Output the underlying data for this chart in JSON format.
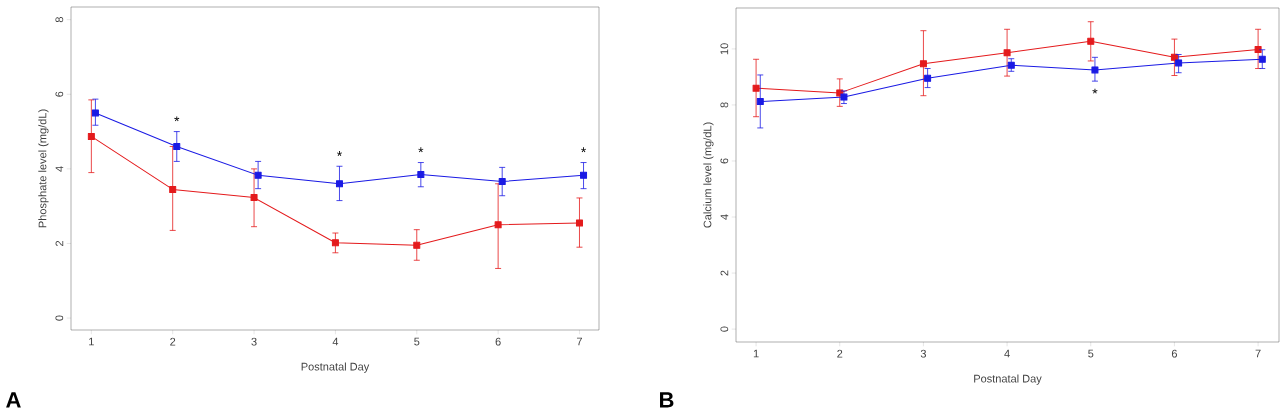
{
  "chart_data": [
    {
      "type": "line",
      "xlabel": "Postnatal Day",
      "ylabel": "Phosphate level (mg/dL)",
      "xlim": [
        0.75,
        7.24
      ],
      "ylim": [
        -0.32,
        8.34
      ],
      "xticks": [
        1,
        2,
        3,
        4,
        5,
        6,
        7
      ],
      "yticks": [
        0,
        2,
        4,
        6,
        8
      ],
      "marker": "square",
      "line_style": "solid",
      "series": [
        {
          "color": "#e41a1c",
          "x": [
            1,
            2,
            3,
            4,
            5,
            6,
            7
          ],
          "values": [
            4.87,
            3.45,
            3.23,
            2.02,
            1.95,
            2.5,
            2.55
          ],
          "errors": [
            [
              3.9,
              5.85
            ],
            [
              2.35,
              4.6
            ],
            [
              2.45,
              4.0
            ],
            [
              1.75,
              2.28
            ],
            [
              1.55,
              2.37
            ],
            [
              1.33,
              3.6
            ],
            [
              1.9,
              3.22
            ]
          ]
        },
        {
          "color": "#1a1ae4",
          "x": [
            1.05,
            2.05,
            3.05,
            4.05,
            5.05,
            6.05,
            7.05
          ],
          "values": [
            5.5,
            4.6,
            3.83,
            3.6,
            3.85,
            3.66,
            3.83
          ],
          "errors": [
            [
              5.17,
              5.87
            ],
            [
              4.2,
              5.0
            ],
            [
              3.47,
              4.2
            ],
            [
              3.15,
              4.07
            ],
            [
              3.52,
              4.17
            ],
            [
              3.28,
              4.04
            ],
            [
              3.47,
              4.17
            ]
          ]
        }
      ],
      "annotations": [
        "A",
        {
          "text": "*",
          "x": 2.05,
          "y": 5.0
        },
        {
          "text": "*",
          "x": 4.05,
          "y": 4.07
        },
        {
          "text": "*",
          "x": 5.05,
          "y": 4.17
        },
        {
          "text": "*",
          "x": 7.05,
          "y": 4.17
        }
      ]
    },
    {
      "type": "line",
      "xlabel": "Postnatal Day",
      "ylabel": "Calcium level (mg/dL)",
      "xlim": [
        0.76,
        7.25
      ],
      "ylim": [
        -0.46,
        11.46
      ],
      "xticks": [
        1,
        2,
        3,
        4,
        5,
        6,
        7
      ],
      "yticks": [
        0,
        2,
        4,
        6,
        8,
        10
      ],
      "marker": "square",
      "line_style": "solid",
      "series": [
        {
          "color": "#e41a1c",
          "x": [
            1,
            2,
            3,
            4,
            5,
            6,
            7
          ],
          "values": [
            8.6,
            8.43,
            9.47,
            9.86,
            10.27,
            9.7,
            9.98
          ],
          "errors": [
            [
              7.58,
              9.63
            ],
            [
              7.95,
              8.93
            ],
            [
              8.33,
              10.65
            ],
            [
              9.03,
              10.7
            ],
            [
              9.57,
              10.97
            ],
            [
              9.05,
              10.35
            ],
            [
              9.3,
              10.7
            ]
          ]
        },
        {
          "color": "#1a1ae4",
          "x": [
            1.05,
            2.05,
            3.05,
            4.05,
            5.05,
            6.05,
            7.05
          ],
          "values": [
            8.12,
            8.28,
            8.95,
            9.42,
            9.25,
            9.5,
            9.63
          ],
          "errors": [
            [
              7.18,
              9.07
            ],
            [
              8.05,
              8.5
            ],
            [
              8.62,
              9.3
            ],
            [
              9.2,
              9.65
            ],
            [
              8.85,
              9.7
            ],
            [
              9.15,
              9.8
            ],
            [
              9.3,
              9.97
            ]
          ]
        }
      ],
      "annotations": [
        "B",
        {
          "text": "*",
          "x": 5.05,
          "y": 8.85
        }
      ]
    }
  ]
}
